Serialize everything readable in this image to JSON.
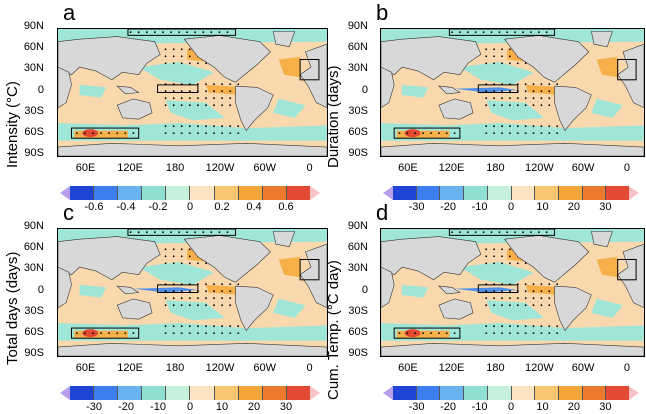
{
  "panels": [
    {
      "letter": "a",
      "ylabel": "Intensity (°C)",
      "ticks": [
        "-0.6",
        "-0.4",
        "-0.2",
        "0",
        "0.2",
        "0.4",
        "0.6"
      ]
    },
    {
      "letter": "b",
      "ylabel": "Duration (days)",
      "ticks": [
        "-30",
        "-20",
        "-10",
        "0",
        "10",
        "20",
        "30"
      ]
    },
    {
      "letter": "c",
      "ylabel": "Total days (days)",
      "ticks": [
        "-30",
        "-20",
        "-10",
        "0",
        "10",
        "20",
        "30"
      ]
    },
    {
      "letter": "d",
      "ylabel": "Cum. Temp. (°C day)",
      "ticks": [
        "-30",
        "-20",
        "-10",
        "0",
        "10",
        "20",
        "30"
      ]
    }
  ],
  "lat_labels": [
    "90N",
    "60N",
    "30N",
    "0",
    "30S",
    "60S",
    "90S"
  ],
  "lon_labels": [
    "60E",
    "120E",
    "180",
    "120W",
    "60W",
    "0"
  ],
  "colorbar_colors": [
    "#b79ee8",
    "#1f45d6",
    "#3e7ff0",
    "#69b4f0",
    "#8fe0d2",
    "#c5f0dc",
    "#fbe4c1",
    "#f8c66f",
    "#f3a53a",
    "#ec7a2c",
    "#e24a33",
    "#f7c2c6"
  ],
  "colors": {
    "ocean_pos": "#f9d8ae",
    "ocean_neg": "#9fe6d9",
    "land": "#d8d8d8"
  }
}
